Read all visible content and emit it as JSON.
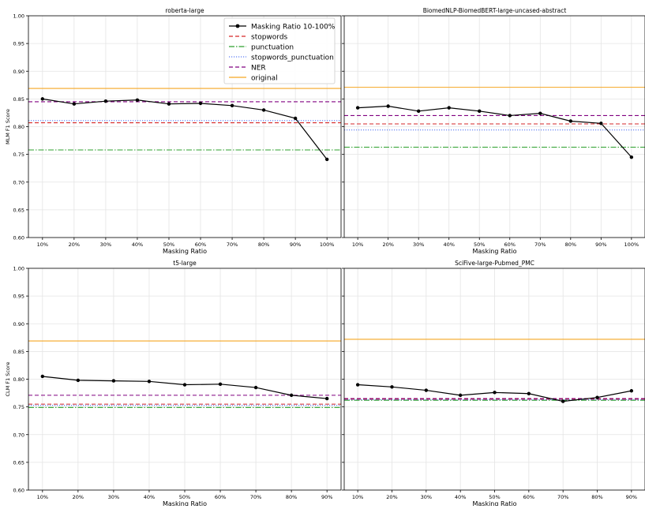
{
  "chart_data": [
    {
      "type": "line",
      "title": "roberta-large",
      "xlabel": "Masking Ratio",
      "ylabel": "MLM F1 Score",
      "ylim": [
        0.6,
        1.0
      ],
      "yticks": [
        "0.60",
        "0.65",
        "0.70",
        "0.75",
        "0.80",
        "0.85",
        "0.90",
        "0.95",
        "1.00"
      ],
      "categories": [
        "10%",
        "20%",
        "30%",
        "40%",
        "50%",
        "60%",
        "70%",
        "80%",
        "90%",
        "100%"
      ],
      "grid": true,
      "legend_position": "top-right",
      "series": [
        {
          "name": "Masking Ratio 10-100%",
          "values": [
            0.85,
            0.841,
            0.846,
            0.848,
            0.841,
            0.842,
            0.838,
            0.83,
            0.815,
            0.741
          ]
        }
      ],
      "baselines": [
        {
          "name": "stopwords",
          "value": 0.807
        },
        {
          "name": "punctuation",
          "value": 0.758
        },
        {
          "name": "stopwords_punctuation",
          "value": 0.811
        },
        {
          "name": "NER",
          "value": 0.845
        },
        {
          "name": "original",
          "value": 0.869
        }
      ]
    },
    {
      "type": "line",
      "title": "BiomedNLP-BiomedBERT-large-uncased-abstract",
      "xlabel": "Masking Ratio",
      "ylabel": "",
      "ylim": [
        0.6,
        1.0
      ],
      "categories": [
        "10%",
        "20%",
        "30%",
        "40%",
        "50%",
        "60%",
        "70%",
        "80%",
        "90%",
        "100%"
      ],
      "grid": true,
      "series": [
        {
          "name": "Masking Ratio 10-100%",
          "values": [
            0.834,
            0.837,
            0.828,
            0.834,
            0.828,
            0.82,
            0.824,
            0.81,
            0.806,
            0.745
          ]
        }
      ],
      "baselines": [
        {
          "name": "stopwords",
          "value": 0.805
        },
        {
          "name": "punctuation",
          "value": 0.763
        },
        {
          "name": "stopwords_punctuation",
          "value": 0.794
        },
        {
          "name": "NER",
          "value": 0.82
        },
        {
          "name": "original",
          "value": 0.871
        }
      ]
    },
    {
      "type": "line",
      "title": "t5-large",
      "xlabel": "Masking Ratio",
      "ylabel": "CLM F1 Score",
      "ylim": [
        0.6,
        1.0
      ],
      "yticks": [
        "0.60",
        "0.65",
        "0.70",
        "0.75",
        "0.80",
        "0.85",
        "0.90",
        "0.95",
        "1.00"
      ],
      "categories": [
        "10%",
        "20%",
        "30%",
        "40%",
        "50%",
        "60%",
        "70%",
        "80%",
        "90%"
      ],
      "grid": true,
      "series": [
        {
          "name": "Masking Ratio 10-100%",
          "values": [
            0.805,
            0.798,
            0.797,
            0.796,
            0.79,
            0.791,
            0.785,
            0.771,
            0.765
          ]
        }
      ],
      "baselines": [
        {
          "name": "stopwords",
          "value": 0.755
        },
        {
          "name": "punctuation",
          "value": 0.749
        },
        {
          "name": "stopwords_punctuation",
          "value": 0.753
        },
        {
          "name": "NER",
          "value": 0.771
        },
        {
          "name": "original",
          "value": 0.869
        }
      ]
    },
    {
      "type": "line",
      "title": "SciFive-large-Pubmed_PMC",
      "xlabel": "Masking Ratio",
      "ylabel": "",
      "ylim": [
        0.6,
        1.0
      ],
      "categories": [
        "10%",
        "20%",
        "30%",
        "40%",
        "50%",
        "60%",
        "70%",
        "80%",
        "90%"
      ],
      "grid": true,
      "series": [
        {
          "name": "Masking Ratio 10-100%",
          "values": [
            0.79,
            0.786,
            0.78,
            0.771,
            0.776,
            0.774,
            0.76,
            0.767,
            0.779
          ]
        }
      ],
      "baselines": [
        {
          "name": "stopwords",
          "value": 0.764
        },
        {
          "name": "punctuation",
          "value": 0.762
        },
        {
          "name": "stopwords_punctuation",
          "value": 0.763
        },
        {
          "name": "NER",
          "value": 0.765
        },
        {
          "name": "original",
          "value": 0.872
        }
      ]
    }
  ],
  "legend": {
    "entries": [
      {
        "label": "Masking Ratio 10-100%",
        "style": "line-marker"
      },
      {
        "label": "stopwords",
        "style": "dashed"
      },
      {
        "label": "punctuation",
        "style": "dashdot"
      },
      {
        "label": "stopwords_punctuation",
        "style": "dotted"
      },
      {
        "label": "NER",
        "style": "dashed"
      },
      {
        "label": "original",
        "style": "solid"
      }
    ]
  },
  "colors": {
    "series": "#000000",
    "stopwords": "#d62728",
    "punctuation": "#2ca02c",
    "stopwords_punctuation": "#5b7cf5",
    "NER": "#800080",
    "original": "#f5a623",
    "grid": "#e4e4e4",
    "axis": "#000000"
  }
}
